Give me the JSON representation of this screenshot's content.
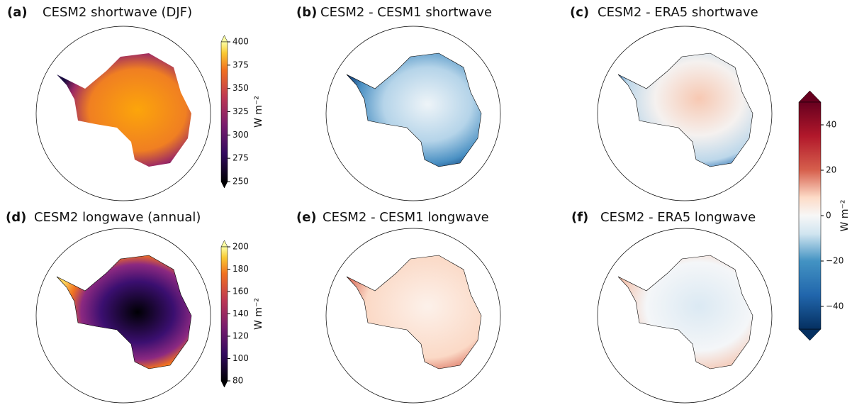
{
  "panels": [
    {
      "label": "(a)",
      "title": "CESM2 shortwave (DJF)"
    },
    {
      "label": "(b)",
      "title": "CESM2 - CESM1 shortwave"
    },
    {
      "label": "(c)",
      "title": "CESM2 - ERA5 shortwave"
    },
    {
      "label": "(d)",
      "title": "CESM2 longwave (annual)"
    },
    {
      "label": "(e)",
      "title": "CESM2 - CESM1 longwave"
    },
    {
      "label": "(f)",
      "title": "CESM2 - ERA5 longwave"
    }
  ],
  "colorbars": [
    {
      "label": "W m⁻²",
      "lim": [
        250,
        400
      ],
      "ticks": [
        250,
        275,
        300,
        325,
        350,
        375,
        400
      ],
      "colormap": "inferno"
    },
    {
      "label": "W m⁻²",
      "lim": [
        80,
        200
      ],
      "ticks": [
        80,
        100,
        120,
        140,
        160,
        180,
        200
      ],
      "colormap": "inferno"
    },
    {
      "label": "W m⁻²",
      "lim": [
        -50,
        50
      ],
      "ticks": [
        {
          "value": -40,
          "label": "−40"
        },
        {
          "value": -20,
          "label": "−20"
        },
        0,
        20,
        40
      ],
      "colormap": "RdBu_r"
    }
  ]
}
